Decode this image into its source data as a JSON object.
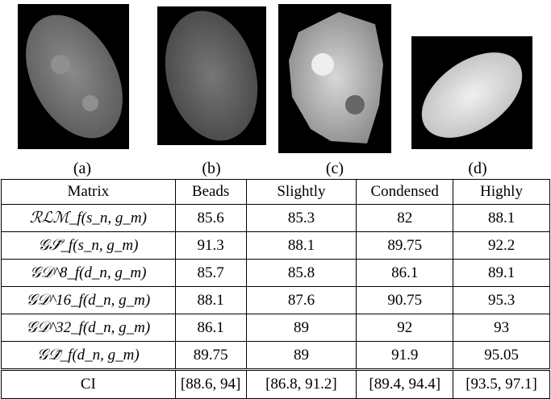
{
  "figure": {
    "captions": [
      "(a)",
      "(b)",
      "(c)",
      "(d)"
    ]
  },
  "table": {
    "header": [
      "Matrix",
      "Beads",
      "Slightly",
      "Condensed",
      "Highly"
    ],
    "rows": [
      [
        "ℛℒℳ_f(s_n, g_m)",
        85.6,
        85.3,
        82,
        88.1
      ],
      [
        "𝒢𝒮̃_f(s_n, g_m)",
        91.3,
        88.1,
        89.75,
        92.2
      ],
      [
        "𝒢𝒟^8_f(d_n, g_m)",
        85.7,
        85.8,
        86.1,
        89.1
      ],
      [
        "𝒢𝒟^16_f(d_n, g_m)",
        88.1,
        87.6,
        90.75,
        95.3
      ],
      [
        "𝒢𝒟^32_f(d_n, g_m)",
        86.1,
        89,
        92,
        93
      ],
      [
        "𝒢𝒟̃_f(d_n, g_m)",
        89.75,
        89,
        91.9,
        95.05
      ]
    ],
    "ci": [
      "CI",
      "[88.6, 94]",
      "[86.8, 91.2]",
      "[89.4, 94.4]",
      "[93.5, 97.1]"
    ]
  }
}
